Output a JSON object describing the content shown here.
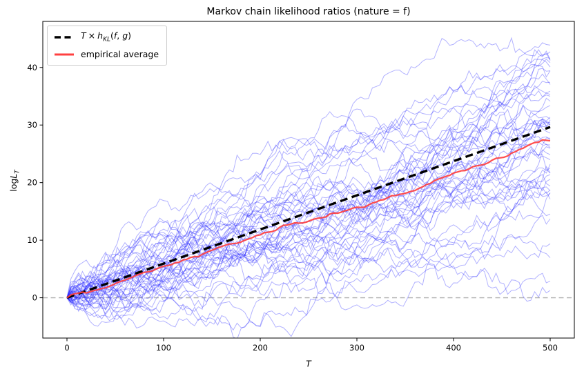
{
  "chart_data": {
    "type": "line",
    "title": "Markov chain likelihood ratios (nature = f)",
    "xlabel": "T",
    "ylabel": {
      "prefix": "log",
      "variable": "L",
      "subscript": "T"
    },
    "xlim": [
      -25,
      525
    ],
    "ylim": [
      -7,
      48
    ],
    "xticks": [
      0,
      100,
      200,
      300,
      400,
      500
    ],
    "yticks": [
      0,
      10,
      20,
      30,
      40
    ],
    "grid": false,
    "frame_color": "#000000",
    "zero_line": {
      "y": 0,
      "color": "#b0b0b0",
      "style": "dashed"
    },
    "kl_line": {
      "x": [
        0,
        500
      ],
      "y": [
        0,
        29.65
      ],
      "slope": 0.0593,
      "color": "#000000",
      "style": "dashed"
    },
    "empirical_average": {
      "label": "empirical average",
      "color": "#ff4040",
      "approx_slope": 0.059
    },
    "ensemble": {
      "description": "Monte Carlo sample paths of log likelihood ratio under nature f",
      "n_paths": 50,
      "t_start": 0,
      "t_max": 500,
      "step": 4,
      "start_value": 0,
      "drift_per_step": 0.0593,
      "sigma_per_step": 0.45,
      "seed": 7,
      "color": "#2222ff",
      "opacity": 0.35,
      "approx_y_range_at_t_max": [
        7,
        45
      ]
    }
  },
  "legend": {
    "entries": [
      {
        "swatch": "black-dashed",
        "label_parts": {
          "var1": "T",
          "operator": "×",
          "var2": "h",
          "subscript": "KL",
          "args_open": "(",
          "arg1": "f",
          "separator": ", ",
          "arg2": "g",
          "args_close": ")"
        }
      },
      {
        "swatch": "red-solid",
        "label": "empirical average"
      }
    ]
  }
}
